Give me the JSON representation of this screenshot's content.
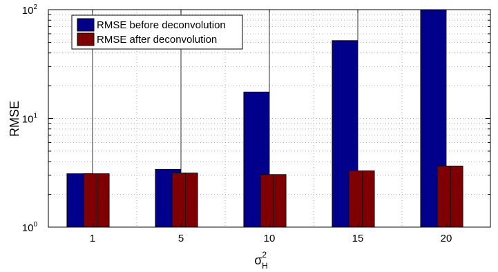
{
  "chart_data": {
    "type": "bar",
    "y_scale": "log",
    "ylabel": "RMSE",
    "xlabel": {
      "base": "σ",
      "sup": "2",
      "sub": "H"
    },
    "categories": [
      "1",
      "5",
      "10",
      "15",
      "20"
    ],
    "ylim": [
      1,
      100
    ],
    "y_ticks": [
      {
        "base": "10",
        "exp": "0",
        "value": 1
      },
      {
        "base": "10",
        "exp": "1",
        "value": 10
      },
      {
        "base": "10",
        "exp": "2",
        "value": 100
      }
    ],
    "grid": true,
    "legend_position": "top-left",
    "series": [
      {
        "name": "RMSE before deconvolution",
        "color": "#00008b",
        "values": [
          3.1,
          3.4,
          17.5,
          52,
          100
        ]
      },
      {
        "name": "RMSE after deconvolution",
        "color": "#7f0000",
        "values": [
          3.1,
          3.15,
          3.05,
          3.3,
          3.65
        ]
      }
    ]
  }
}
